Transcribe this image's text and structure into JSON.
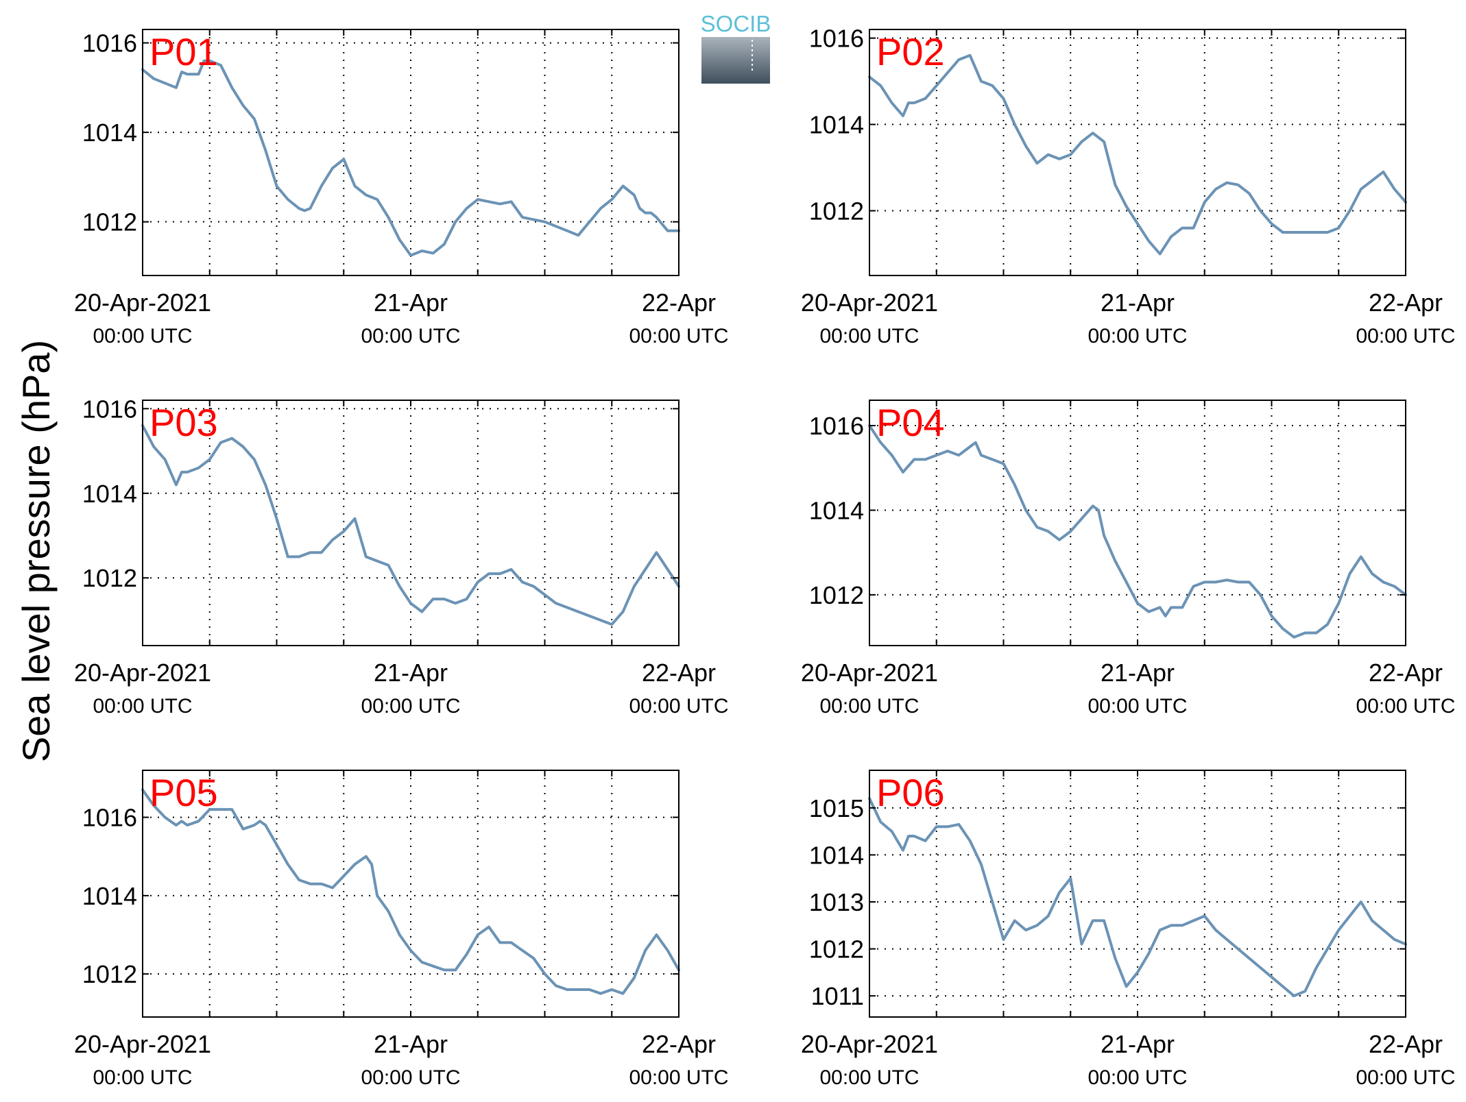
{
  "figure": {
    "ylabel": "Sea level pressure (hPa)",
    "logo_text": "SOCIB",
    "line_color": "#6b93b5",
    "panel_label_color": "#ff0000",
    "xticks": [
      {
        "line1": "20-Apr-2021",
        "line2": "00:00 UTC"
      },
      {
        "line1": "21-Apr",
        "line2": "00:00 UTC"
      },
      {
        "line1": "22-Apr",
        "line2": "00:00 UTC"
      }
    ]
  },
  "chart_data": [
    {
      "type": "line",
      "label": "P01",
      "x_unit": "hours since 20-Apr-2021 00:00 UTC",
      "xlim": [
        0,
        48
      ],
      "ylim": [
        1010.8,
        1016.3
      ],
      "yticks": [
        1012,
        1014,
        1016
      ],
      "x": [
        0,
        1,
        2,
        3,
        3.5,
        4,
        5,
        5.5,
        6,
        7,
        8,
        9,
        10,
        11,
        12,
        13,
        14,
        14.5,
        15,
        16,
        16.5,
        17,
        18,
        19,
        20,
        21,
        22,
        23,
        24,
        25,
        26,
        27,
        28,
        29,
        30,
        31,
        32,
        33,
        34,
        35,
        36,
        37,
        38,
        39,
        40,
        41,
        42,
        43,
        44,
        44.5,
        45,
        45.5,
        46,
        47,
        48
      ],
      "values": [
        1015.4,
        1015.2,
        1015.1,
        1015.0,
        1015.35,
        1015.3,
        1015.3,
        1015.6,
        1015.6,
        1015.5,
        1015.0,
        1014.6,
        1014.3,
        1013.6,
        1012.8,
        1012.5,
        1012.3,
        1012.25,
        1012.3,
        1012.8,
        1013.0,
        1013.2,
        1013.4,
        1012.8,
        1012.6,
        1012.5,
        1012.1,
        1011.6,
        1011.25,
        1011.35,
        1011.3,
        1011.5,
        1012.0,
        1012.3,
        1012.5,
        1012.45,
        1012.4,
        1012.45,
        1012.1,
        1012.05,
        1012.0,
        1011.9,
        1011.8,
        1011.7,
        1012.0,
        1012.3,
        1012.5,
        1012.8,
        1012.6,
        1012.3,
        1012.2,
        1012.2,
        1012.1,
        1011.8,
        1011.8
      ]
    },
    {
      "type": "line",
      "label": "P02",
      "x_unit": "hours since 20-Apr-2021 00:00 UTC",
      "xlim": [
        0,
        48
      ],
      "ylim": [
        1010.5,
        1016.2
      ],
      "yticks": [
        1012,
        1014,
        1016
      ],
      "x": [
        0,
        1,
        2,
        3,
        3.5,
        4,
        5,
        6,
        7,
        8,
        9,
        9.5,
        10,
        11,
        12,
        13,
        14,
        15,
        16,
        17,
        18,
        19,
        20,
        21,
        22,
        23,
        24,
        25,
        26,
        27,
        28,
        29,
        30,
        31,
        32,
        33,
        34,
        35,
        36,
        37,
        38,
        39,
        40,
        41,
        42,
        43,
        44,
        45,
        46,
        47,
        48
      ],
      "values": [
        1015.1,
        1014.9,
        1014.5,
        1014.2,
        1014.5,
        1014.5,
        1014.6,
        1014.9,
        1015.2,
        1015.5,
        1015.6,
        1015.3,
        1015.0,
        1014.9,
        1014.6,
        1014.0,
        1013.5,
        1013.1,
        1013.3,
        1013.2,
        1013.3,
        1013.6,
        1013.8,
        1013.6,
        1012.6,
        1012.1,
        1011.7,
        1011.3,
        1011.0,
        1011.4,
        1011.6,
        1011.6,
        1012.2,
        1012.5,
        1012.65,
        1012.6,
        1012.4,
        1012.0,
        1011.7,
        1011.5,
        1011.5,
        1011.5,
        1011.5,
        1011.5,
        1011.6,
        1012.0,
        1012.5,
        1012.7,
        1012.9,
        1012.5,
        1012.2
      ]
    },
    {
      "type": "line",
      "label": "P03",
      "x_unit": "hours since 20-Apr-2021 00:00 UTC",
      "xlim": [
        0,
        48
      ],
      "ylim": [
        1010.4,
        1016.2
      ],
      "yticks": [
        1012,
        1014,
        1016
      ],
      "x": [
        0,
        1,
        2,
        3,
        3.5,
        4,
        5,
        6,
        7,
        8,
        9,
        10,
        11,
        12,
        13,
        14,
        15,
        16,
        17,
        18,
        19,
        20,
        21,
        22,
        23,
        24,
        25,
        26,
        27,
        28,
        29,
        30,
        31,
        32,
        33,
        34,
        35,
        36,
        37,
        38,
        39,
        40,
        41,
        42,
        43,
        44,
        45,
        46,
        47,
        48
      ],
      "values": [
        1015.6,
        1015.1,
        1014.8,
        1014.2,
        1014.5,
        1014.5,
        1014.6,
        1014.8,
        1015.2,
        1015.3,
        1015.1,
        1014.8,
        1014.2,
        1013.4,
        1012.5,
        1012.5,
        1012.6,
        1012.6,
        1012.9,
        1013.1,
        1013.4,
        1012.5,
        1012.4,
        1012.3,
        1011.8,
        1011.4,
        1011.2,
        1011.5,
        1011.5,
        1011.4,
        1011.5,
        1011.9,
        1012.1,
        1012.1,
        1012.2,
        1011.9,
        1011.8,
        1011.6,
        1011.4,
        1011.3,
        1011.2,
        1011.1,
        1011.0,
        1010.9,
        1011.2,
        1011.8,
        1012.2,
        1012.6,
        1012.2,
        1011.8
      ]
    },
    {
      "type": "line",
      "label": "P04",
      "x_unit": "hours since 20-Apr-2021 00:00 UTC",
      "xlim": [
        0,
        48
      ],
      "ylim": [
        1010.8,
        1016.6
      ],
      "yticks": [
        1012,
        1014,
        1016
      ],
      "x": [
        0,
        1,
        2,
        3,
        4,
        5,
        6,
        7,
        8,
        9,
        9.5,
        10,
        11,
        12,
        13,
        14,
        15,
        16,
        17,
        18,
        19,
        20,
        20.5,
        21,
        22,
        23,
        24,
        25,
        26,
        26.5,
        27,
        28,
        29,
        30,
        31,
        32,
        33,
        34,
        35,
        36,
        37,
        38,
        39,
        40,
        41,
        42,
        43,
        44,
        45,
        46,
        47,
        48
      ],
      "values": [
        1016.0,
        1015.6,
        1015.3,
        1014.9,
        1015.2,
        1015.2,
        1015.3,
        1015.4,
        1015.3,
        1015.5,
        1015.6,
        1015.3,
        1015.2,
        1015.1,
        1014.6,
        1014.0,
        1013.6,
        1013.5,
        1013.3,
        1013.5,
        1013.8,
        1014.1,
        1014.0,
        1013.4,
        1012.8,
        1012.3,
        1011.8,
        1011.6,
        1011.7,
        1011.5,
        1011.7,
        1011.7,
        1012.2,
        1012.3,
        1012.3,
        1012.35,
        1012.3,
        1012.3,
        1012.0,
        1011.5,
        1011.2,
        1011.0,
        1011.1,
        1011.1,
        1011.3,
        1011.8,
        1012.5,
        1012.9,
        1012.5,
        1012.3,
        1012.2,
        1012.0
      ]
    },
    {
      "type": "line",
      "label": "P05",
      "x_unit": "hours since 20-Apr-2021 00:00 UTC",
      "xlim": [
        0,
        48
      ],
      "ylim": [
        1010.9,
        1017.2
      ],
      "yticks": [
        1012,
        1014,
        1016
      ],
      "x": [
        0,
        1,
        2,
        3,
        3.5,
        4,
        5,
        6,
        7,
        8,
        9,
        10,
        10.5,
        11,
        12,
        13,
        14,
        15,
        16,
        17,
        18,
        19,
        20,
        20.5,
        21,
        22,
        23,
        24,
        25,
        26,
        27,
        28,
        29,
        30,
        31,
        32,
        33,
        34,
        35,
        36,
        37,
        38,
        39,
        40,
        41,
        42,
        43,
        44,
        45,
        46,
        47,
        48
      ],
      "values": [
        1016.7,
        1016.3,
        1016.0,
        1015.8,
        1015.9,
        1015.8,
        1015.9,
        1016.2,
        1016.2,
        1016.2,
        1015.7,
        1015.8,
        1015.9,
        1015.8,
        1015.3,
        1014.8,
        1014.4,
        1014.3,
        1014.3,
        1014.2,
        1014.5,
        1014.8,
        1015.0,
        1014.8,
        1014.0,
        1013.6,
        1013.0,
        1012.6,
        1012.3,
        1012.2,
        1012.1,
        1012.1,
        1012.5,
        1013.0,
        1013.2,
        1012.8,
        1012.8,
        1012.6,
        1012.4,
        1012.0,
        1011.7,
        1011.6,
        1011.6,
        1011.6,
        1011.5,
        1011.6,
        1011.5,
        1011.9,
        1012.6,
        1013.0,
        1012.6,
        1012.1
      ]
    },
    {
      "type": "line",
      "label": "P06",
      "x_unit": "hours since 20-Apr-2021 00:00 UTC",
      "xlim": [
        0,
        48
      ],
      "ylim": [
        1010.55,
        1015.8
      ],
      "yticks": [
        1011,
        1012,
        1013,
        1014,
        1015
      ],
      "x": [
        0,
        1,
        2,
        3,
        3.5,
        4,
        5,
        6,
        7,
        8,
        9,
        10,
        11,
        12,
        13,
        14,
        15,
        16,
        17,
        18,
        19,
        20,
        21,
        22,
        23,
        24,
        25,
        26,
        27,
        28,
        29,
        30,
        31,
        32,
        33,
        34,
        35,
        36,
        37,
        38,
        39,
        40,
        41,
        42,
        43,
        44,
        45,
        46,
        47,
        48
      ],
      "values": [
        1015.2,
        1014.7,
        1014.5,
        1014.1,
        1014.4,
        1014.4,
        1014.3,
        1014.6,
        1014.6,
        1014.65,
        1014.3,
        1013.8,
        1013.0,
        1012.2,
        1012.6,
        1012.4,
        1012.5,
        1012.7,
        1013.2,
        1013.5,
        1012.1,
        1012.6,
        1012.6,
        1011.8,
        1011.2,
        1011.5,
        1011.9,
        1012.4,
        1012.5,
        1012.5,
        1012.6,
        1012.7,
        1012.4,
        1012.2,
        1012.0,
        1011.8,
        1011.6,
        1011.4,
        1011.2,
        1011.0,
        1011.1,
        1011.6,
        1012.0,
        1012.4,
        1012.7,
        1013.0,
        1012.6,
        1012.4,
        1012.2,
        1012.1
      ]
    }
  ]
}
